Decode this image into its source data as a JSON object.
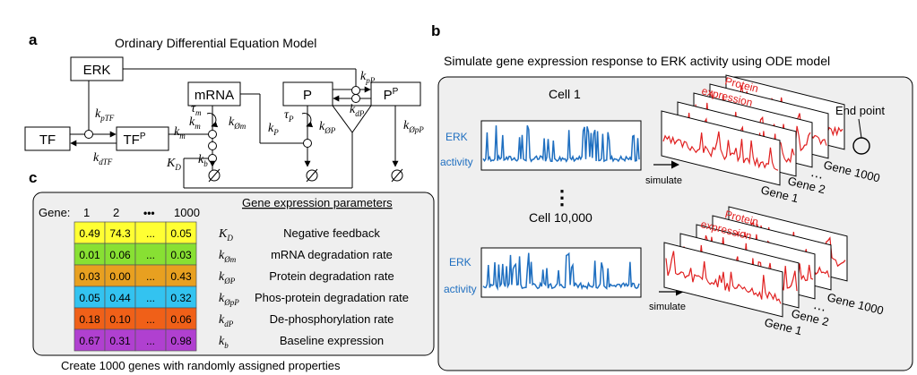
{
  "panel_a": {
    "letter": "a",
    "title": "Ordinary Differential Equation Model",
    "nodes": {
      "erk": "ERK",
      "tf": "TF",
      "tfp": "TF",
      "tfp_sup": "P",
      "mrna": "mRNA",
      "p": "P",
      "pp": "P",
      "pp_sup": "P"
    },
    "rates": {
      "kpTF_k": "k",
      "kpTF_sub": "pTF",
      "kdTF_k": "k",
      "kdTF_sub": "dTF",
      "km1_k": "k",
      "km1_sub": "m",
      "km2_k": "k",
      "km2_sub": "m",
      "taum_t": "τ",
      "taum_sub": "m",
      "kom_k": "k",
      "kom_sub": "Øm",
      "KD_k": "K",
      "KD_sub": "D",
      "kb_k": "k",
      "kb_sub": "b",
      "kP_k": "k",
      "kP_sub": "P",
      "tauP_t": "τ",
      "tauP_sub": "P",
      "koP_k": "k",
      "koP_sub": "ØP",
      "kdP_k": "k",
      "kdP_sub": "dP",
      "kpP_k": "k",
      "kpP_sub": "pP",
      "kopP_k": "k",
      "kopP_sub": "ØpP"
    },
    "sinks": [
      "Ø",
      "Ø",
      "Ø"
    ]
  },
  "panel_b": {
    "letter": "b",
    "title": "Simulate gene expression response to ERK activity using ODE model",
    "cell1": "Cell 1",
    "cell2": "Cell 10,000",
    "erk_label_1": "ERK",
    "erk_label_2": "activity",
    "simulate": "simulate",
    "protein_1": "Protein",
    "protein_2": "expression",
    "end_point": "End point",
    "gene_1": "Gene 1",
    "gene_2": "Gene 2",
    "gene_1000": "Gene 1000",
    "dots": "⋮",
    "ellipsis": "⋯"
  },
  "panel_c": {
    "letter": "c",
    "header": "Gene expression parameters",
    "gene_label": "Gene:",
    "columns": [
      "1",
      "2",
      "•••",
      "1000"
    ],
    "rows": [
      {
        "sym": "K",
        "sub": "D",
        "name": "Negative feedback",
        "values": [
          "0.49",
          "74.3",
          "...",
          "0.05"
        ],
        "color": "#ffff33"
      },
      {
        "sym": "k",
        "sub": "Øm",
        "name": "mRNA degradation rate",
        "values": [
          "0.01",
          "0.06",
          "...",
          "0.03"
        ],
        "color": "#88e033"
      },
      {
        "sym": "k",
        "sub": "ØP",
        "name": "Protein degradation rate",
        "values": [
          "0.03",
          "0.00",
          "...",
          "0.43"
        ],
        "color": "#e8a020"
      },
      {
        "sym": "k",
        "sub": "ØpP",
        "name": "Phos-protein degradation rate",
        "values": [
          "0.05",
          "0.44",
          "...",
          "0.32"
        ],
        "color": "#33c3f0"
      },
      {
        "sym": "k",
        "sub": "dP",
        "name": "De-phosphorylation rate",
        "values": [
          "0.18",
          "0.10",
          "...",
          "0.06"
        ],
        "color": "#f06018"
      },
      {
        "sym": "k",
        "sub": "b",
        "name": "Baseline expression",
        "values": [
          "0.67",
          "0.31",
          "...",
          "0.98"
        ],
        "color": "#b040d0"
      }
    ],
    "caption": "Create 1000 genes with randomly assigned properties"
  }
}
